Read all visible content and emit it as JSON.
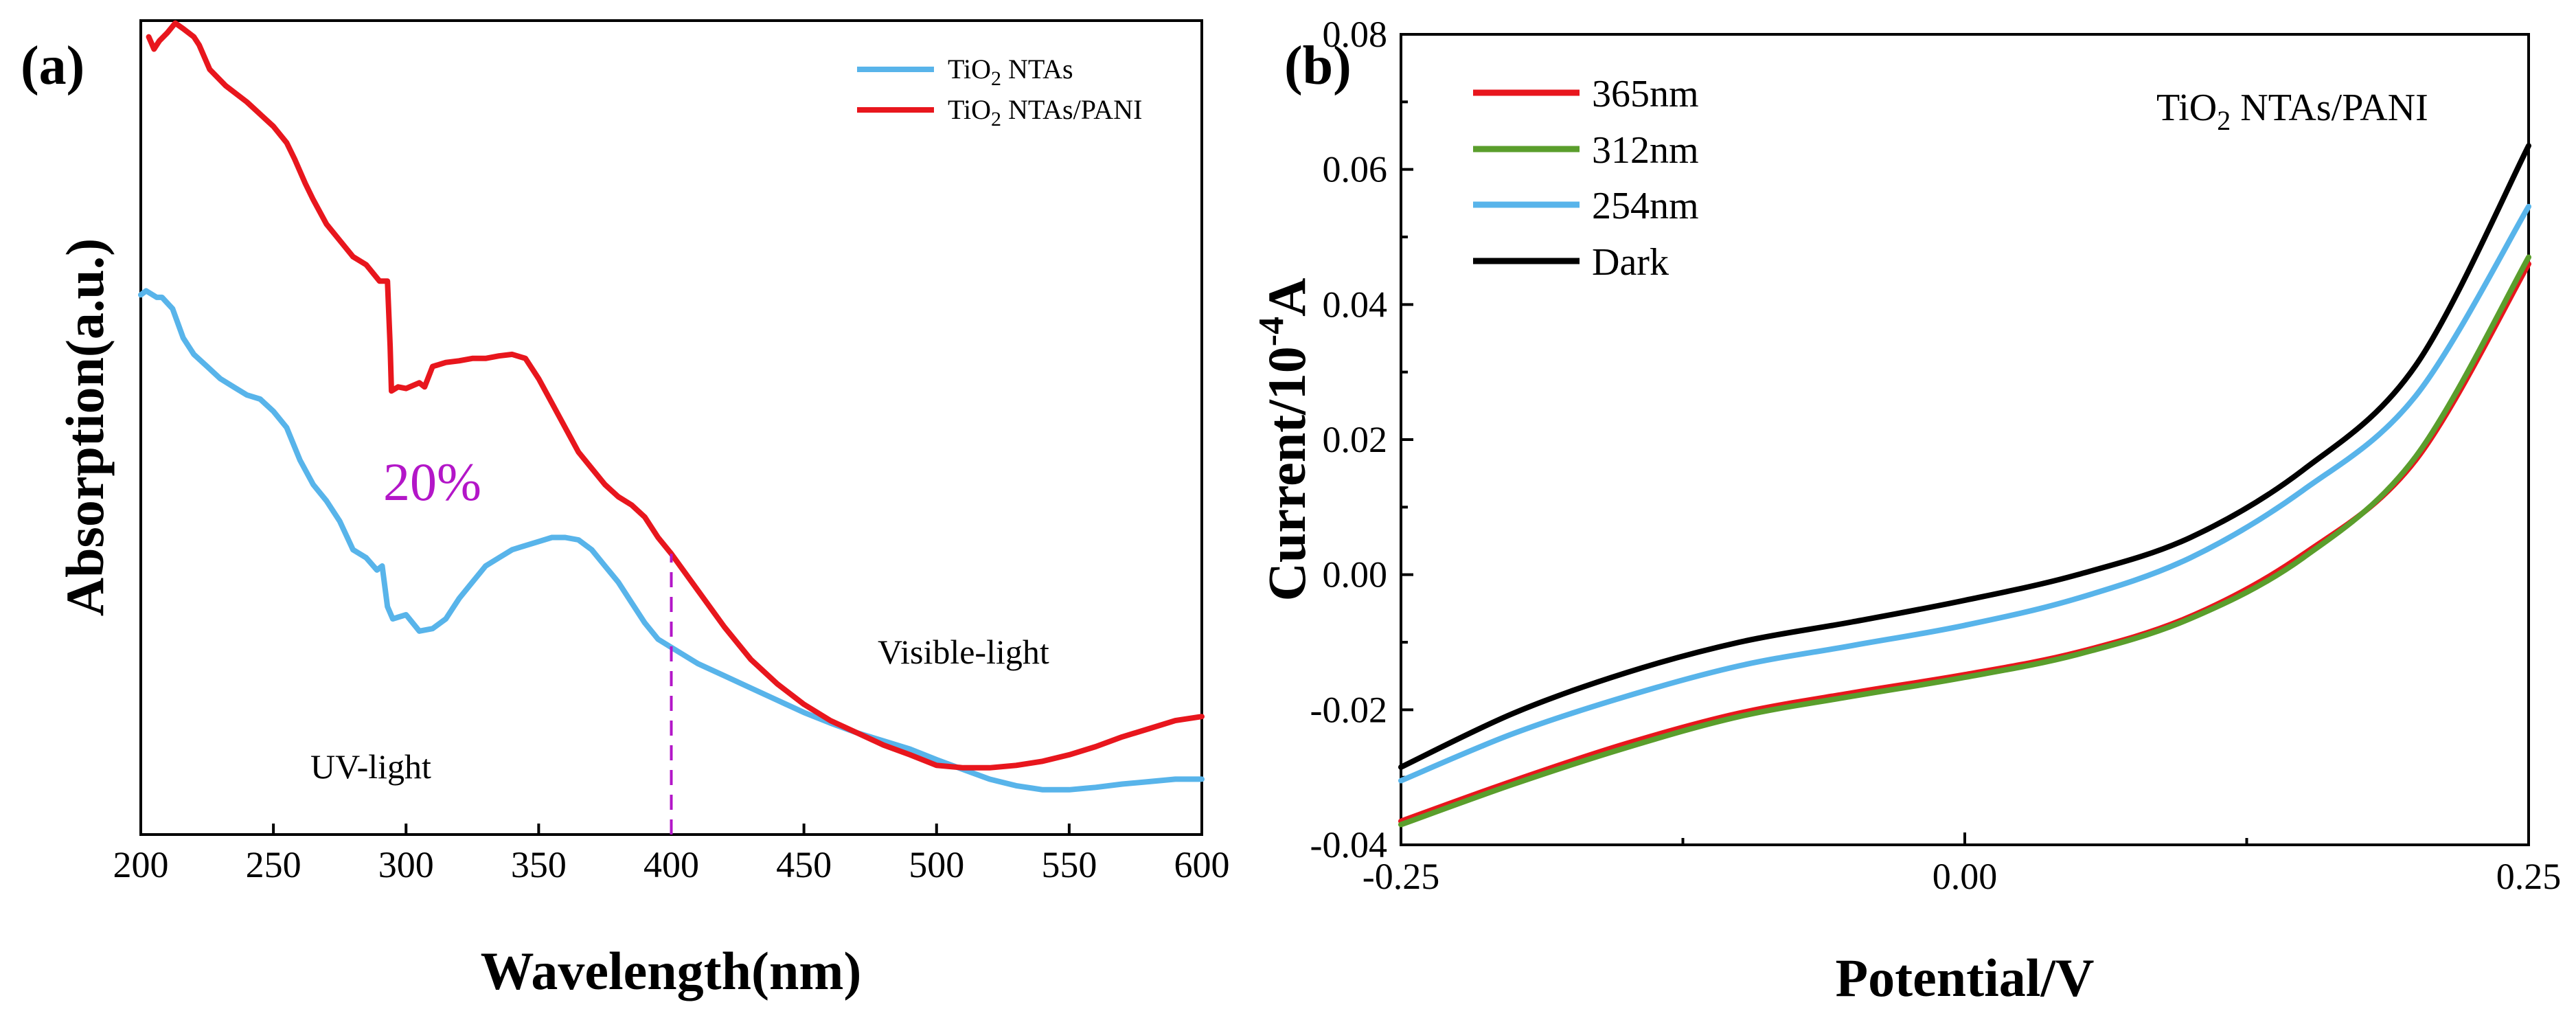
{
  "chart_data": [
    {
      "panel": "(a)",
      "type": "line",
      "xlabel": "Wavelength(nm)",
      "ylabel": "Absorption(a.u.)",
      "xlim": [
        200,
        600
      ],
      "ylim": [
        0,
        1
      ],
      "x_ticks": [
        200,
        250,
        300,
        350,
        400,
        450,
        500,
        550,
        600
      ],
      "y_ticks_shown": false,
      "legend": {
        "position": "top-right",
        "entries": [
          {
            "sub_prefix": "TiO",
            "sub": "2",
            "suffix": " NTAs",
            "color": "#58b4ea"
          },
          {
            "sub_prefix": "TiO",
            "sub": "2",
            "suffix": " NTAs/PANI",
            "color": "#e8161d"
          }
        ]
      },
      "series": [
        {
          "name": "TiO2 NTAs",
          "color": "#58b4ea",
          "points": [
            [
              200,
              0.663
            ],
            [
              202,
              0.668
            ],
            [
              206,
              0.66
            ],
            [
              208,
              0.66
            ],
            [
              212,
              0.646
            ],
            [
              216,
              0.61
            ],
            [
              220,
              0.59
            ],
            [
              225,
              0.575
            ],
            [
              230,
              0.56
            ],
            [
              235,
              0.55
            ],
            [
              240,
              0.54
            ],
            [
              245,
              0.535
            ],
            [
              250,
              0.52
            ],
            [
              255,
              0.5
            ],
            [
              260,
              0.46
            ],
            [
              265,
              0.43
            ],
            [
              270,
              0.41
            ],
            [
              275,
              0.385
            ],
            [
              280,
              0.35
            ],
            [
              285,
              0.34
            ],
            [
              289,
              0.325
            ],
            [
              291,
              0.33
            ],
            [
              293,
              0.28
            ],
            [
              295,
              0.265
            ],
            [
              300,
              0.27
            ],
            [
              305,
              0.25
            ],
            [
              310,
              0.253
            ],
            [
              315,
              0.265
            ],
            [
              320,
              0.29
            ],
            [
              325,
              0.31
            ],
            [
              330,
              0.33
            ],
            [
              335,
              0.34
            ],
            [
              340,
              0.35
            ],
            [
              345,
              0.355
            ],
            [
              350,
              0.36
            ],
            [
              355,
              0.365
            ],
            [
              360,
              0.365
            ],
            [
              365,
              0.362
            ],
            [
              370,
              0.35
            ],
            [
              375,
              0.33
            ],
            [
              380,
              0.31
            ],
            [
              385,
              0.285
            ],
            [
              390,
              0.26
            ],
            [
              395,
              0.24
            ],
            [
              400,
              0.23
            ],
            [
              410,
              0.21
            ],
            [
              420,
              0.195
            ],
            [
              430,
              0.18
            ],
            [
              440,
              0.165
            ],
            [
              450,
              0.15
            ],
            [
              460,
              0.137
            ],
            [
              470,
              0.125
            ],
            [
              480,
              0.115
            ],
            [
              490,
              0.105
            ],
            [
              500,
              0.092
            ],
            [
              510,
              0.08
            ],
            [
              520,
              0.068
            ],
            [
              530,
              0.06
            ],
            [
              540,
              0.055
            ],
            [
              550,
              0.055
            ],
            [
              560,
              0.058
            ],
            [
              570,
              0.062
            ],
            [
              580,
              0.065
            ],
            [
              590,
              0.068
            ],
            [
              600,
              0.068
            ]
          ]
        },
        {
          "name": "TiO2 NTAs/PANI",
          "color": "#e8161d",
          "points": [
            [
              203,
              0.98
            ],
            [
              205,
              0.965
            ],
            [
              207,
              0.975
            ],
            [
              210,
              0.985
            ],
            [
              213,
              0.997
            ],
            [
              216,
              0.99
            ],
            [
              220,
              0.98
            ],
            [
              222,
              0.97
            ],
            [
              226,
              0.94
            ],
            [
              232,
              0.92
            ],
            [
              240,
              0.9
            ],
            [
              250,
              0.87
            ],
            [
              255,
              0.85
            ],
            [
              258,
              0.83
            ],
            [
              262,
              0.8
            ],
            [
              265,
              0.78
            ],
            [
              270,
              0.75
            ],
            [
              275,
              0.73
            ],
            [
              280,
              0.71
            ],
            [
              285,
              0.7
            ],
            [
              290,
              0.68
            ],
            [
              293,
              0.68
            ],
            [
              294,
              0.6
            ],
            [
              294.5,
              0.545
            ],
            [
              297,
              0.55
            ],
            [
              300,
              0.548
            ],
            [
              305,
              0.555
            ],
            [
              307,
              0.55
            ],
            [
              310,
              0.575
            ],
            [
              315,
              0.58
            ],
            [
              320,
              0.582
            ],
            [
              325,
              0.585
            ],
            [
              330,
              0.585
            ],
            [
              335,
              0.588
            ],
            [
              340,
              0.59
            ],
            [
              345,
              0.585
            ],
            [
              350,
              0.56
            ],
            [
              355,
              0.53
            ],
            [
              360,
              0.5
            ],
            [
              365,
              0.47
            ],
            [
              370,
              0.45
            ],
            [
              375,
              0.43
            ],
            [
              380,
              0.415
            ],
            [
              385,
              0.405
            ],
            [
              390,
              0.39
            ],
            [
              395,
              0.365
            ],
            [
              400,
              0.345
            ],
            [
              410,
              0.3
            ],
            [
              420,
              0.255
            ],
            [
              430,
              0.215
            ],
            [
              440,
              0.185
            ],
            [
              450,
              0.16
            ],
            [
              460,
              0.14
            ],
            [
              470,
              0.125
            ],
            [
              480,
              0.11
            ],
            [
              490,
              0.098
            ],
            [
              500,
              0.085
            ],
            [
              510,
              0.082
            ],
            [
              520,
              0.082
            ],
            [
              530,
              0.085
            ],
            [
              540,
              0.09
            ],
            [
              550,
              0.098
            ],
            [
              560,
              0.108
            ],
            [
              570,
              0.12
            ],
            [
              580,
              0.13
            ],
            [
              590,
              0.14
            ],
            [
              600,
              0.145
            ]
          ]
        }
      ],
      "annotations": {
        "uv": "UV-light",
        "visible": "Visible-light",
        "percent": "20%",
        "percent_color": "#b316c8",
        "divider_x": 400,
        "divider_color": "#b316c8"
      }
    },
    {
      "panel": "(b)",
      "type": "line",
      "xlabel": "Potential/V",
      "ylabel_prefix": "Current/10",
      "ylabel_exp": "-4",
      "ylabel_suffix": "A",
      "xlim": [
        -0.25,
        0.25
      ],
      "ylim": [
        -0.04,
        0.08
      ],
      "x_ticks": [
        "-0.25",
        "0.00",
        "0.25"
      ],
      "y_ticks": [
        "-0.04",
        "-0.02",
        "0.00",
        "0.02",
        "0.04",
        "0.06",
        "0.08"
      ],
      "inset_title": {
        "prefix": "TiO",
        "sub": "2",
        "suffix": " NTAs/PANI"
      },
      "legend": {
        "position": "top-left",
        "entries": [
          {
            "label": "365nm",
            "color": "#e8161d"
          },
          {
            "label": "312nm",
            "color": "#5a9e2c"
          },
          {
            "label": "254nm",
            "color": "#58b4ea"
          },
          {
            "label": "Dark",
            "color": "#000000"
          }
        ]
      },
      "series": [
        {
          "name": "365nm",
          "color": "#e8161d",
          "x": [
            -0.25,
            -0.2,
            -0.15,
            -0.1,
            -0.05,
            0.0,
            0.05,
            0.1,
            0.15,
            0.2,
            0.25
          ],
          "y": [
            -0.0365,
            -0.0305,
            -0.025,
            -0.0205,
            -0.0175,
            -0.0148,
            -0.0115,
            -0.0062,
            0.003,
            0.017,
            0.046
          ]
        },
        {
          "name": "312nm",
          "color": "#5a9e2c",
          "x": [
            -0.25,
            -0.2,
            -0.15,
            -0.1,
            -0.05,
            0.0,
            0.05,
            0.1,
            0.15,
            0.2,
            0.25
          ],
          "y": [
            -0.037,
            -0.031,
            -0.0256,
            -0.021,
            -0.018,
            -0.0152,
            -0.0118,
            -0.0065,
            0.0025,
            0.0175,
            0.047
          ]
        },
        {
          "name": "254nm",
          "color": "#58b4ea",
          "x": [
            -0.25,
            -0.2,
            -0.15,
            -0.1,
            -0.05,
            0.0,
            0.05,
            0.1,
            0.15,
            0.2,
            0.25
          ],
          "y": [
            -0.0305,
            -0.0235,
            -0.018,
            -0.0135,
            -0.0105,
            -0.0075,
            -0.0035,
            0.0025,
            0.0125,
            0.0265,
            0.0545
          ]
        },
        {
          "name": "Dark",
          "color": "#000000",
          "x": [
            -0.25,
            -0.2,
            -0.15,
            -0.1,
            -0.05,
            0.0,
            0.05,
            0.1,
            0.15,
            0.2,
            0.25
          ],
          "y": [
            -0.0285,
            -0.0205,
            -0.0145,
            -0.01,
            -0.007,
            -0.0038,
            0.0,
            0.0055,
            0.0155,
            0.031,
            0.0635
          ]
        }
      ]
    }
  ]
}
